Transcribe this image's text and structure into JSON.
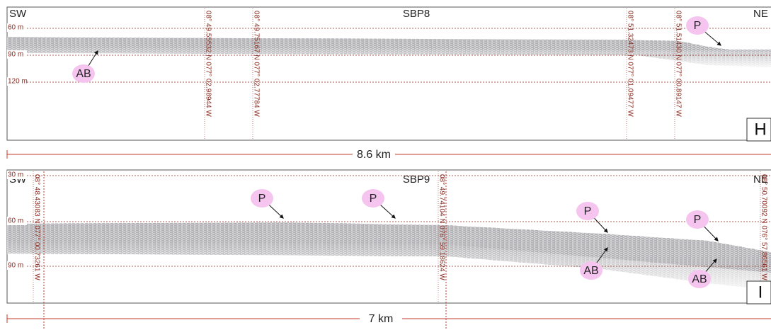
{
  "panels": [
    {
      "label": "H",
      "profile": "SBP8",
      "start": "SW",
      "end": "NE",
      "depths": [
        "60 m",
        "90 m",
        "120 m"
      ],
      "coordinates": [
        "08° 49.55532 N 077° 02.98944 W",
        "08° 49.75167 N 077° 02.77784 W",
        "08° 51.32473 N 077° 01.09477 W",
        "08° 51.51430 N 077° 00.89147 W"
      ],
      "markers": [
        "P",
        "AB"
      ],
      "scale": "8.6 km"
    },
    {
      "label": "I",
      "profile": "SBP9",
      "start": "SW",
      "end": "NE",
      "depths": [
        "30 m",
        "60 m",
        "90 m"
      ],
      "coordinates": [
        "08° 48.43083 N 077° 00.73261 W",
        "08° 49.74104 N 076° 59.18624 W",
        "08° 50.70092 N 076° 57.86561 W"
      ],
      "markers": [
        "P",
        "P",
        "P",
        "P",
        "AB",
        "AB"
      ],
      "scale": "7 km"
    }
  ]
}
